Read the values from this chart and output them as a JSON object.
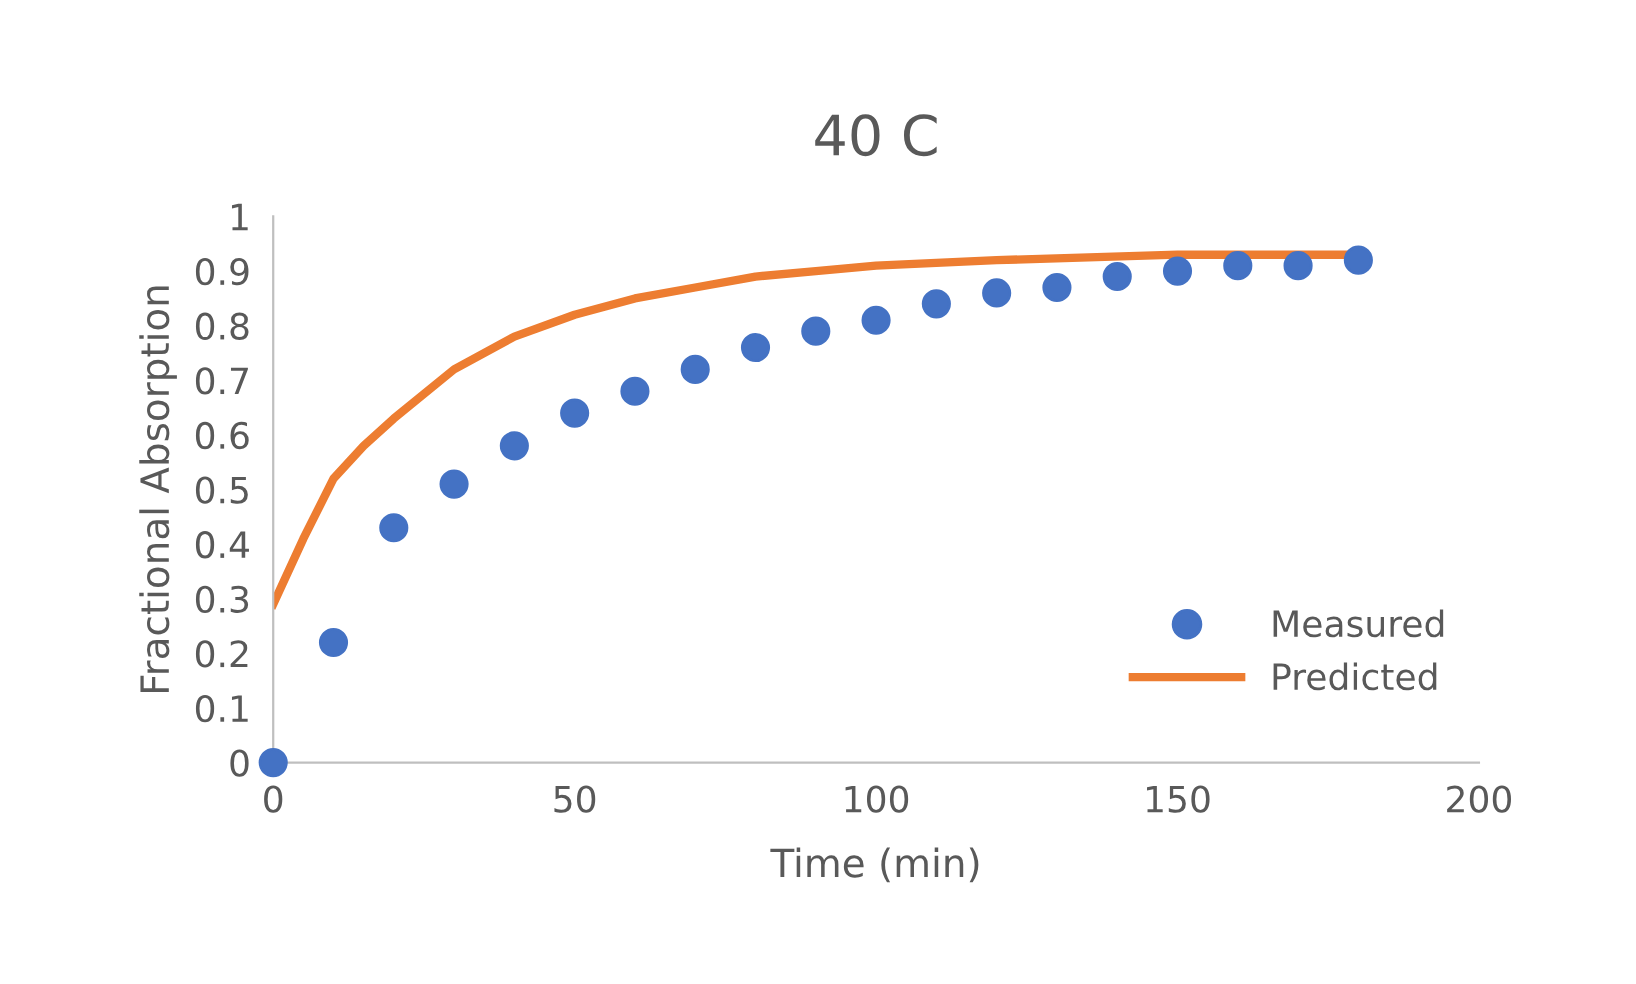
{
  "chart_data": {
    "type": "scatter",
    "title": "40 C",
    "xlabel": "Time (min)",
    "ylabel": "Fractional Absorption",
    "xlim": [
      0,
      200
    ],
    "xticks": [
      0,
      50,
      100,
      150,
      200
    ],
    "ylim": [
      0,
      1
    ],
    "yticks": [
      0,
      0.1,
      0.2,
      0.3,
      0.4,
      0.5,
      0.6,
      0.7,
      0.8,
      0.9,
      1
    ],
    "grid": false,
    "legend": "right",
    "series": [
      {
        "name": "Measured",
        "marker": "circle",
        "color": "#4472c4",
        "x": [
          0,
          10,
          20,
          30,
          40,
          50,
          60,
          70,
          80,
          90,
          100,
          110,
          120,
          130,
          140,
          150,
          160,
          170,
          180
        ],
        "values": [
          0,
          0.22,
          0.43,
          0.51,
          0.58,
          0.64,
          0.68,
          0.72,
          0.76,
          0.79,
          0.81,
          0.84,
          0.86,
          0.87,
          0.89,
          0.9,
          0.91,
          0.91,
          0.92
        ]
      },
      {
        "name": "Predicted",
        "type": "line",
        "marker": "none",
        "color": "#ed7d31",
        "x": [
          0,
          5,
          10,
          15,
          20,
          30,
          40,
          50,
          60,
          70,
          80,
          90,
          100,
          120,
          150,
          180
        ],
        "values": [
          0.29,
          0.41,
          0.52,
          0.58,
          0.63,
          0.72,
          0.78,
          0.82,
          0.85,
          0.87,
          0.89,
          0.9,
          0.91,
          0.92,
          0.93,
          0.93
        ]
      }
    ]
  }
}
